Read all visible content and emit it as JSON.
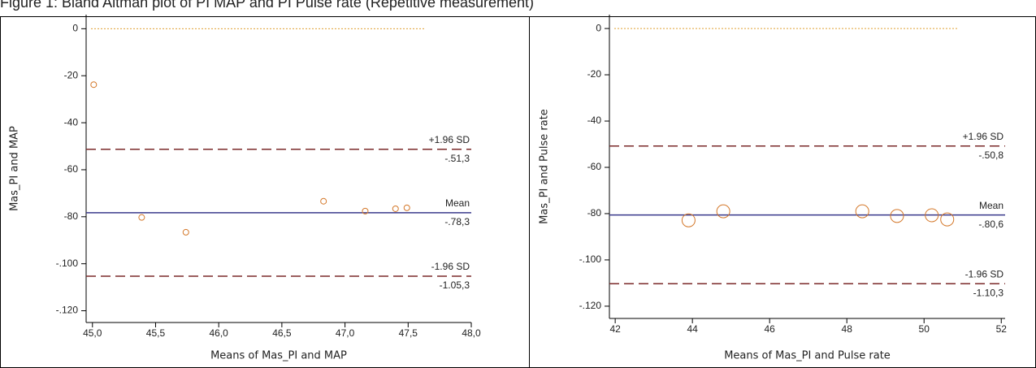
{
  "title": "Figure 1: Bland Altman plot of PI MAP and PI Pulse rate (Repetitive measurement)",
  "chart_data": [
    {
      "type": "scatter",
      "xlabel": "Means of Mas_PI and MAP",
      "ylabel": "Mas_PI and MAP",
      "xlim": [
        44.95,
        48.0
      ],
      "ylim": [
        -125,
        6
      ],
      "xticks": [
        {
          "value": 45,
          "label": "45,0"
        },
        {
          "value": 45.5,
          "label": "45,5"
        },
        {
          "value": 46,
          "label": "46,0"
        },
        {
          "value": 46.5,
          "label": "46,5"
        },
        {
          "value": 47,
          "label": "47,0"
        },
        {
          "value": 47.5,
          "label": "47,5"
        },
        {
          "value": 48,
          "label": "48,0"
        }
      ],
      "yticks": [
        0,
        -20,
        -40,
        -60,
        -80,
        {
          "value": -100,
          "label": "-.100"
        },
        {
          "value": -120,
          "label": "-.120"
        }
      ],
      "series": [
        {
          "color": "#d4782a",
          "x": [
            45.01,
            45.39,
            45.74,
            46.83,
            47.16,
            47.4,
            47.49
          ],
          "values": [
            -23.8,
            -80.3,
            -86.6,
            -73.4,
            -77.6,
            -76.6,
            -76.2
          ]
        }
      ],
      "reference_line": {
        "value": 0,
        "color": "#e0a030"
      },
      "lines": [
        {
          "name": "+1.96 SD",
          "value": -51.3,
          "value_label": "-.51,3",
          "color": "#7b2a2a",
          "style": "dashed"
        },
        {
          "name": "Mean",
          "value": -78.3,
          "value_label": "-.78,3",
          "color": "#3a3a8c",
          "style": "solid"
        },
        {
          "name": "-1.96 SD",
          "value": -105.3,
          "value_label": "-1.05,3",
          "color": "#7b2a2a",
          "style": "dashed"
        }
      ]
    },
    {
      "type": "scatter",
      "xlabel": "Means of Mas_PI and Pulse rate",
      "ylabel": "Mas_PI and Pulse rate",
      "xlim": [
        41.85,
        52.1
      ],
      "ylim": [
        -125.3,
        6
      ],
      "xticks": [
        42,
        44,
        46,
        48,
        50,
        52
      ],
      "yticks": [
        0,
        -20,
        -40,
        -60,
        -80,
        {
          "value": -100,
          "label": "-.100"
        },
        {
          "value": -120,
          "label": "-.120"
        }
      ],
      "series": [
        {
          "color": "#d4782a",
          "x": [
            43.9,
            44.8,
            48.4,
            49.3,
            50.2,
            50.6
          ],
          "values": [
            -82.9,
            -79.0,
            -79.0,
            -81.0,
            -80.7,
            -82.5
          ]
        }
      ],
      "reference_line": {
        "value": 0,
        "color": "#e0a030"
      },
      "lines": [
        {
          "name": "+1.96 SD",
          "value": -50.8,
          "value_label": "-.50,8",
          "color": "#7b2a2a",
          "style": "dashed"
        },
        {
          "name": "Mean",
          "value": -80.6,
          "value_label": "-.80,6",
          "color": "#3a3a8c",
          "style": "solid"
        },
        {
          "name": "-1.96 SD",
          "value": -110.3,
          "value_label": "-1.10,3",
          "color": "#7b2a2a",
          "style": "dashed"
        }
      ]
    }
  ]
}
